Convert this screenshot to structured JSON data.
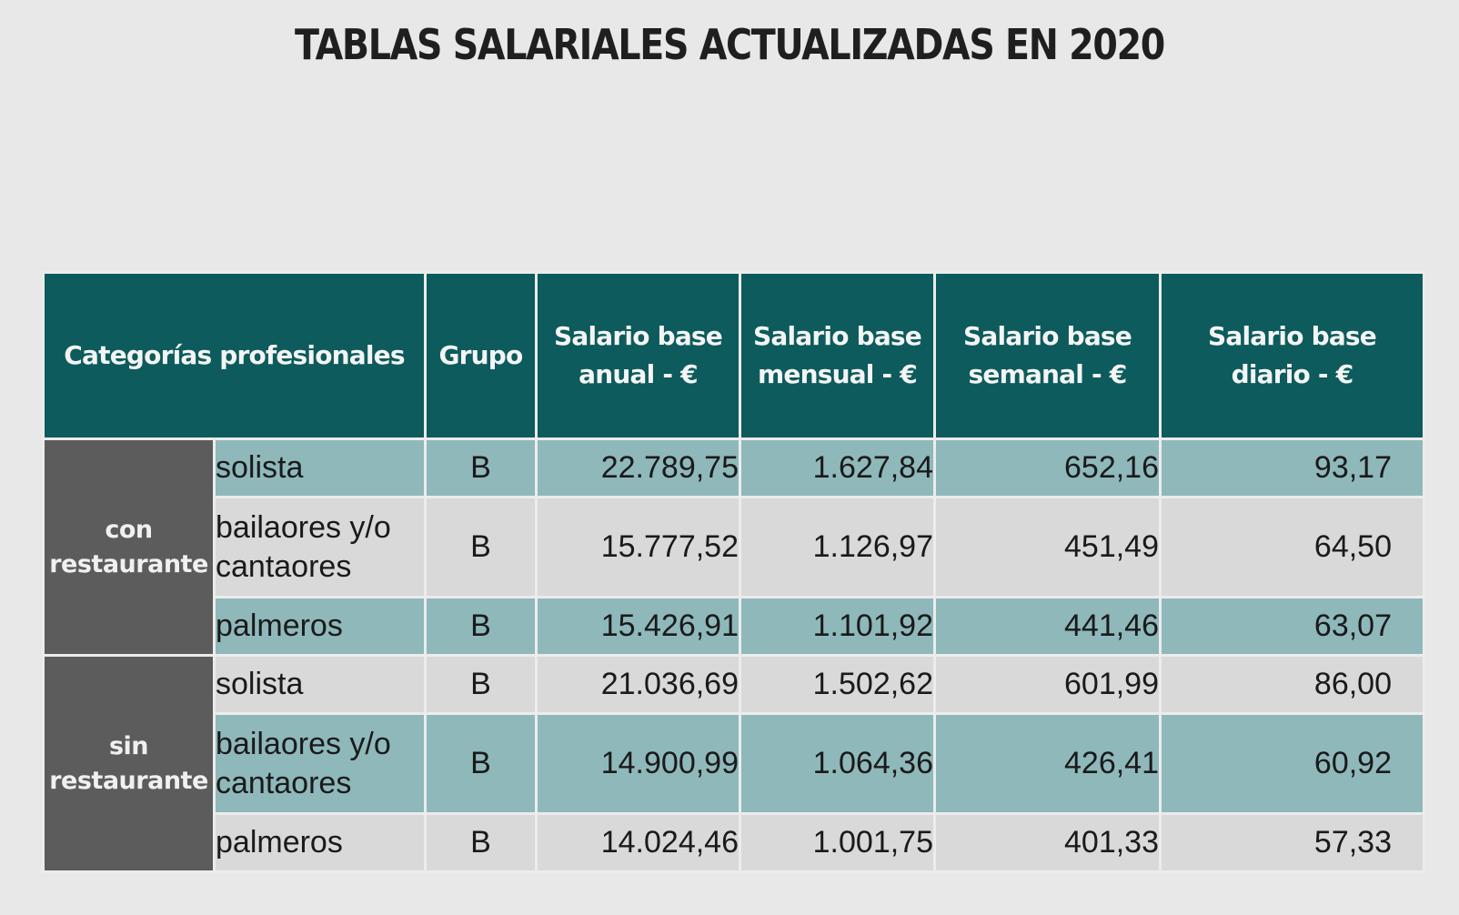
{
  "title": "TABLAS SALARIALES ACTUALIZADAS EN 2020",
  "table": {
    "headers": {
      "categorias": "Categorías profesionales",
      "grupo": "Grupo",
      "anual": [
        "Salario base",
        "anual - €"
      ],
      "mensual": [
        "Salario base",
        "mensual - €"
      ],
      "semanal": [
        "Salario base",
        "semanal - €"
      ],
      "diario": [
        "Salario base",
        "diario - €"
      ]
    },
    "groups": [
      {
        "label": [
          "con",
          "restaurante"
        ],
        "rows": [
          {
            "categoria": [
              "solista"
            ],
            "grupo": "B",
            "anual": "22.789,75",
            "mensual": "1.627,84",
            "semanal": "652,16",
            "diario": "93,17"
          },
          {
            "categoria": [
              "bailaores y/o",
              "cantaores"
            ],
            "grupo": "B",
            "anual": "15.777,52",
            "mensual": "1.126,97",
            "semanal": "451,49",
            "diario": "64,50"
          },
          {
            "categoria": [
              "palmeros"
            ],
            "grupo": "B",
            "anual": "15.426,91",
            "mensual": "1.101,92",
            "semanal": "441,46",
            "diario": "63,07"
          }
        ]
      },
      {
        "label": [
          "sin",
          "restaurante"
        ],
        "rows": [
          {
            "categoria": [
              "solista"
            ],
            "grupo": "B",
            "anual": "21.036,69",
            "mensual": "1.502,62",
            "semanal": "601,99",
            "diario": "86,00"
          },
          {
            "categoria": [
              "bailaores y/o",
              "cantaores"
            ],
            "grupo": "B",
            "anual": "14.900,99",
            "mensual": "1.064,36",
            "semanal": "426,41",
            "diario": "60,92"
          },
          {
            "categoria": [
              "palmeros"
            ],
            "grupo": "B",
            "anual": "14.024,46",
            "mensual": "1.001,75",
            "semanal": "401,33",
            "diario": "57,33"
          }
        ]
      }
    ]
  },
  "colors": {
    "header_bg": "#0d5b5c",
    "group_bg": "#5c5c5c",
    "row_teal": "#8fb8bb",
    "row_gray": "#d9d9d9",
    "page_bg": "#e8e8e8"
  }
}
